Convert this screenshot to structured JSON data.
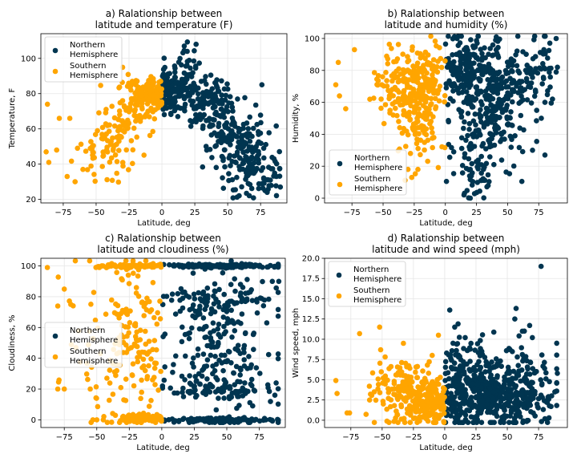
{
  "colors": {
    "north": "#003550",
    "south": "#FFA500"
  },
  "chart_data": [
    {
      "type": "scatter",
      "title": "a) Ralationship between\nlatitude and temperature (F)",
      "xlabel": "Latitude, deg",
      "ylabel": "Temperature, F",
      "xlim": [
        -92,
        95
      ],
      "ylim": [
        18,
        114
      ],
      "xticks": [
        -75,
        -50,
        -25,
        0,
        25,
        50,
        75
      ],
      "yticks": [
        20,
        40,
        60,
        80,
        100
      ],
      "grid": true,
      "legend": {
        "position": "top-left",
        "entries": [
          "Northern\nHemisphere",
          "Southern\nHemisphere"
        ]
      },
      "series": [
        {
          "name": "Northern\nHemisphere",
          "clusters": [
            {
              "center": [
                5,
                82
              ],
              "spread": [
                6,
                6
              ],
              "count": 110
            },
            {
              "center": [
                20,
                90
              ],
              "spread": [
                6,
                10
              ],
              "count": 50
            },
            {
              "center": [
                35,
                75
              ],
              "spread": [
                10,
                8
              ],
              "count": 120
            },
            {
              "center": [
                55,
                55
              ],
              "spread": [
                10,
                10
              ],
              "count": 110
            },
            {
              "center": [
                68,
                40
              ],
              "spread": [
                9,
                9
              ],
              "count": 100
            },
            {
              "center": [
                82,
                32
              ],
              "spread": [
                5,
                6
              ],
              "count": 15
            }
          ],
          "points": [
            [
              76,
              85
            ],
            [
              90,
              27
            ],
            [
              87,
              33
            ],
            [
              26,
              108
            ],
            [
              17,
              107
            ],
            [
              80,
              24
            ]
          ]
        },
        {
          "name": "Southern\nHemisphere",
          "clusters": [
            {
              "center": [
                -8,
                80
              ],
              "spread": [
                5,
                5
              ],
              "count": 100
            },
            {
              "center": [
                -22,
                72
              ],
              "spread": [
                7,
                8
              ],
              "count": 80
            },
            {
              "center": [
                -35,
                55
              ],
              "spread": [
                8,
                10
              ],
              "count": 60
            },
            {
              "center": [
                -50,
                45
              ],
              "spread": [
                8,
                8
              ],
              "count": 25
            }
          ],
          "points": [
            [
              -87,
              74
            ],
            [
              -88,
              47
            ],
            [
              -80,
              48
            ],
            [
              -72,
              33
            ],
            [
              -70,
              66
            ],
            [
              -66,
              30
            ],
            [
              -60,
              37
            ],
            [
              -86,
              41
            ],
            [
              -78,
              66
            ]
          ]
        }
      ]
    },
    {
      "type": "scatter",
      "title": "b) Ralationship between\nlatitude and humidity (%)",
      "xlabel": "Latitude, deg",
      "ylabel": "Humidity, %",
      "xlim": [
        -97,
        98
      ],
      "ylim": [
        -3,
        103
      ],
      "xticks": [
        -75,
        -50,
        -25,
        0,
        25,
        50,
        75
      ],
      "yticks": [
        0,
        20,
        40,
        60,
        80,
        100
      ],
      "grid": true,
      "legend": {
        "position": "lower-left",
        "entries": [
          "Northern\nHemisphere",
          "Southern\nHemisphere"
        ]
      },
      "series": [
        {
          "name": "Northern\nHemisphere",
          "clusters": [
            {
              "center": [
                15,
                80
              ],
              "spread": [
                10,
                10
              ],
              "count": 160
            },
            {
              "center": [
                45,
                70
              ],
              "spread": [
                15,
                15
              ],
              "count": 200
            },
            {
              "center": [
                30,
                40
              ],
              "spread": [
                15,
                15
              ],
              "count": 110
            },
            {
              "center": [
                25,
                15
              ],
              "spread": [
                8,
                7
              ],
              "count": 40
            },
            {
              "center": [
                75,
                80
              ],
              "spread": [
                7,
                8
              ],
              "count": 40
            }
          ],
          "points": [
            [
              89,
              79
            ],
            [
              86,
              62
            ],
            [
              90,
              82
            ],
            [
              89,
              100
            ],
            [
              80,
              60
            ],
            [
              20,
              0
            ],
            [
              15,
              2
            ],
            [
              70,
              30
            ],
            [
              80,
              27
            ]
          ]
        },
        {
          "name": "Southern\nHemisphere",
          "clusters": [
            {
              "center": [
                -15,
                75
              ],
              "spread": [
                8,
                10
              ],
              "count": 120
            },
            {
              "center": [
                -25,
                60
              ],
              "spread": [
                10,
                12
              ],
              "count": 100
            },
            {
              "center": [
                -40,
                75
              ],
              "spread": [
                10,
                12
              ],
              "count": 70
            },
            {
              "center": [
                -20,
                40
              ],
              "spread": [
                8,
                10
              ],
              "count": 40
            }
          ],
          "points": [
            [
              -88,
              71
            ],
            [
              -85,
              64
            ],
            [
              -80,
              56
            ],
            [
              -86,
              85
            ],
            [
              -73,
              93
            ],
            [
              -30,
              18
            ],
            [
              -27,
              13
            ],
            [
              -22,
              18
            ],
            [
              -28,
              28
            ]
          ]
        }
      ]
    },
    {
      "type": "scatter",
      "title": "c) Ralationship between\nlatitude and cloudiness (%)",
      "xlabel": "Latitude, deg",
      "ylabel": "Cloudiness, %",
      "xlim": [
        -93,
        95
      ],
      "ylim": [
        -5,
        105
      ],
      "xticks": [
        -75,
        -50,
        -25,
        0,
        25,
        50,
        75
      ],
      "yticks": [
        0,
        20,
        40,
        60,
        80,
        100
      ],
      "grid": true,
      "legend": {
        "position": "center-left",
        "entries": [
          "Northern\nHemisphere",
          "Southern\nHemisphere"
        ]
      },
      "series": [
        {
          "name": "Northern\nHemisphere",
          "clusters": [
            {
              "center": [
                45,
                100
              ],
              "spread": [
                22,
                0.6
              ],
              "count": 160
            },
            {
              "center": [
                45,
                0
              ],
              "spread": [
                22,
                0.6
              ],
              "count": 120
            },
            {
              "center": [
                45,
                40
              ],
              "spread": [
                22,
                27
              ],
              "count": 220
            },
            {
              "center": [
                45,
                75
              ],
              "spread": [
                22,
                6
              ],
              "count": 70
            },
            {
              "center": [
                45,
                20
              ],
              "spread": [
                22,
                4
              ],
              "count": 50
            }
          ],
          "points": [
            [
              88,
              24
            ],
            [
              90,
              90
            ],
            [
              85,
              90
            ],
            [
              87,
              16
            ],
            [
              80,
              0
            ]
          ]
        },
        {
          "name": "Southern\nHemisphere",
          "clusters": [
            {
              "center": [
                -20,
                100
              ],
              "spread": [
                15,
                0.6
              ],
              "count": 80
            },
            {
              "center": [
                -15,
                1
              ],
              "spread": [
                10,
                1.2
              ],
              "count": 110
            },
            {
              "center": [
                -20,
                55
              ],
              "spread": [
                12,
                25
              ],
              "count": 120
            },
            {
              "center": [
                -40,
                40
              ],
              "spread": [
                15,
                30
              ],
              "count": 50
            }
          ],
          "points": [
            [
              -88,
              99
            ],
            [
              -80,
              20
            ],
            [
              -75,
              20
            ],
            [
              -80,
              74
            ],
            [
              -75,
              85
            ],
            [
              -70,
              75
            ],
            [
              -66,
              47
            ],
            [
              -55,
              20
            ],
            [
              -53,
              0
            ],
            [
              -50,
              0
            ],
            [
              -45,
              0
            ]
          ]
        }
      ]
    },
    {
      "type": "scatter",
      "title": "d) Ralationship between\nlatitude and wind speed (mph)",
      "xlabel": "Latitude, deg",
      "ylabel": "Wind speed, mph",
      "xlim": [
        -96,
        98
      ],
      "ylim": [
        -0.9,
        20.0
      ],
      "xticks": [
        -75,
        -50,
        -25,
        0,
        25,
        50,
        75
      ],
      "yticks": [
        0.0,
        2.5,
        5.0,
        7.5,
        10.0,
        12.5,
        15.0,
        17.5,
        20.0
      ],
      "grid": true,
      "legend": {
        "position": "top-left",
        "entries": [
          "Northern\nHemisphere",
          "Southern\nHemisphere"
        ]
      },
      "series": [
        {
          "name": "Northern\nHemisphere",
          "clusters": [
            {
              "center": [
                45,
                3
              ],
              "spread": [
                22,
                1.8
              ],
              "count": 350
            },
            {
              "center": [
                15,
                4
              ],
              "spread": [
                10,
                2.5
              ],
              "count": 120
            },
            {
              "center": [
                50,
                6
              ],
              "spread": [
                18,
                2.5
              ],
              "count": 90
            },
            {
              "center": [
                10,
                8.5
              ],
              "spread": [
                7,
                1.5
              ],
              "count": 20
            }
          ],
          "points": [
            [
              77,
              19
            ],
            [
              4,
              13.6
            ],
            [
              57,
              13.8
            ],
            [
              56,
              12.5
            ],
            [
              8,
              11.5
            ],
            [
              90,
              5.8
            ],
            [
              88,
              3.5
            ],
            [
              70,
              10.2
            ],
            [
              62,
              11
            ]
          ]
        },
        {
          "name": "Southern\nHemisphere",
          "clusters": [
            {
              "center": [
                -12,
                2.5
              ],
              "spread": [
                9,
                1.6
              ],
              "count": 170
            },
            {
              "center": [
                -30,
                3.5
              ],
              "spread": [
                11,
                1.8
              ],
              "count": 110
            },
            {
              "center": [
                -45,
                4
              ],
              "spread": [
                8,
                2.5
              ],
              "count": 30
            }
          ],
          "points": [
            [
              -87,
              4.9
            ],
            [
              -86,
              3.3
            ],
            [
              -78,
              0.9
            ],
            [
              -76,
              0.9
            ],
            [
              -68,
              10.7
            ],
            [
              -52,
              11.5
            ],
            [
              -33,
              9.5
            ],
            [
              -5,
              10.5
            ],
            [
              -10,
              8
            ],
            [
              -60,
              2.5
            ]
          ]
        }
      ]
    }
  ]
}
